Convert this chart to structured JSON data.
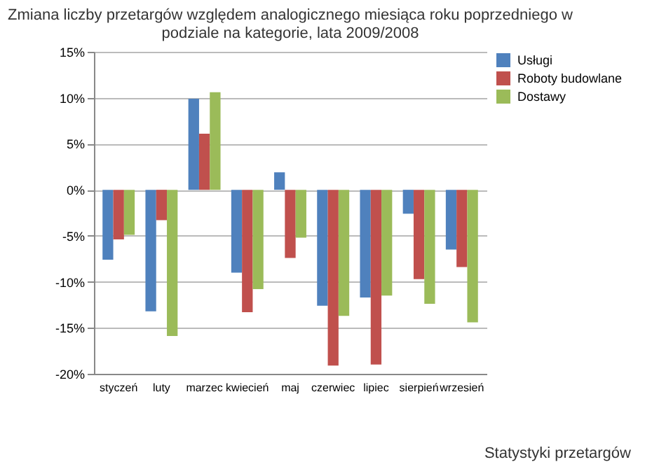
{
  "chart_data": {
    "type": "bar",
    "title": "Zmiana liczby przetargów względem analogicznego miesiąca roku poprzedniego w podziale na kategorie, lata 2009/2008",
    "categories": [
      "styczeń",
      "luty",
      "marzec",
      "kwiecień",
      "maj",
      "czerwiec",
      "lipiec",
      "sierpień",
      "wrzesień"
    ],
    "series": [
      {
        "name": "Usługi",
        "color": "#4f81bd",
        "values": [
          -7.6,
          -13.2,
          9.9,
          -9.0,
          1.9,
          -12.6,
          -11.7,
          -2.6,
          -6.5
        ]
      },
      {
        "name": "Roboty budowlane",
        "color": "#c0504d",
        "values": [
          -5.4,
          -3.3,
          6.1,
          -13.3,
          -7.4,
          -19.1,
          -19.0,
          -9.7,
          -8.4
        ]
      },
      {
        "name": "Dostawy",
        "color": "#9bbb59",
        "values": [
          -4.9,
          -15.9,
          10.6,
          -10.8,
          -5.2,
          -13.7,
          -11.5,
          -12.4,
          -14.4
        ]
      }
    ],
    "ylim": [
      -20,
      15
    ],
    "yticks": [
      {
        "value": -20,
        "label": "-20%"
      },
      {
        "value": -15,
        "label": "-15%"
      },
      {
        "value": -10,
        "label": "-10%"
      },
      {
        "value": -5,
        "label": "-5%"
      },
      {
        "value": 0,
        "label": "0%"
      },
      {
        "value": 5,
        "label": "5%"
      },
      {
        "value": 10,
        "label": "10%"
      },
      {
        "value": 15,
        "label": "15%"
      }
    ],
    "grid": "y",
    "legend": "right",
    "annotations": [
      "Statystyki przetargów"
    ]
  }
}
